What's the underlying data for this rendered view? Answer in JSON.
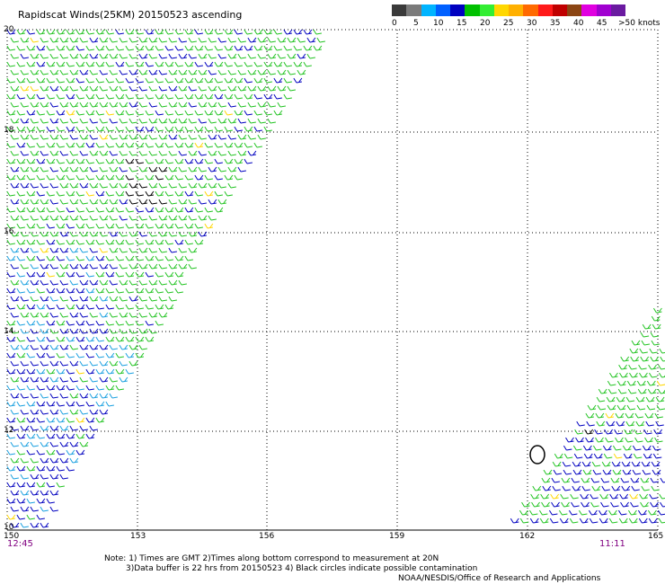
{
  "title": "Rapidscat Winds(25KM) 20150523 ascending",
  "legend": {
    "colors": [
      "#3a3a3a",
      "#7a7a7a",
      "#00b4ff",
      "#0060ff",
      "#0000c0",
      "#00c000",
      "#33ee33",
      "#ffd700",
      "#ffb000",
      "#ff6a00",
      "#ff1a1a",
      "#c00000",
      "#8b4513",
      "#e000e0",
      "#a000d0",
      "#6a1aa0"
    ],
    "labels": [
      "0",
      "5",
      "10",
      "15",
      "20",
      "25",
      "30",
      "35",
      "40",
      "45",
      ">50 knots"
    ]
  },
  "map": {
    "lat_labels": [
      "20",
      "18",
      "16",
      "14",
      "12",
      "10"
    ],
    "lon_labels": [
      "150",
      "153",
      "156",
      "159",
      "162",
      "165"
    ],
    "time_left": "12:45",
    "time_right": "11:11",
    "grid": true
  },
  "notes": {
    "line1": "Note: 1) Times are GMT 2)Times along bottom correspond to measurement at 20N",
    "line2": "3)Data buffer is 22 hrs from 20150523 4) Black circles indicate possible contamination",
    "line3": "NOAA/NESDIS/Office of Research and Applications"
  }
}
